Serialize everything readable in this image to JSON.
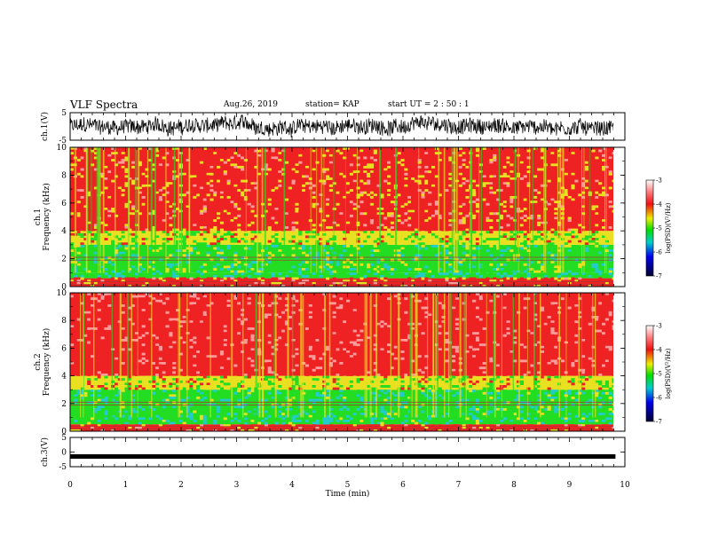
{
  "header": {
    "title": "VLF Spectra",
    "date": "Aug.26, 2019",
    "station": "station= KAP",
    "start": "start UT = 2 : 50 : 1"
  },
  "colors": {
    "red": "#ee2222",
    "pink": "#ff9a9a",
    "yellow": "#e8e020",
    "green": "#22dd22",
    "cyan": "#22cccc",
    "blue": "#1010cc",
    "navy": "#000040"
  },
  "chart_data": [
    {
      "type": "line",
      "ylabel": "ch.1(V)",
      "ylim": [
        -5,
        5
      ],
      "yticks": [
        "5",
        "-5"
      ],
      "description_values": "noisy waveform fluctuating roughly between -4 and 4 V",
      "xlim": [
        0,
        10
      ]
    },
    {
      "type": "heatmap",
      "ylabel": "ch.1\nFrequency (kHz)",
      "ylabel_lines": [
        "ch.1",
        "Frequency (kHz)"
      ],
      "ylim": [
        0,
        10
      ],
      "yticks": [
        "0",
        "2",
        "4",
        "6",
        "8",
        "10"
      ],
      "bands": [
        {
          "from": 0,
          "to": 0.6,
          "level": -4
        },
        {
          "from": 0.6,
          "to": 1.0,
          "level": -5.2
        },
        {
          "from": 1.0,
          "to": 3.0,
          "level": -5.0
        },
        {
          "from": 3.0,
          "to": 4.0,
          "level": -4.6
        },
        {
          "from": 4.0,
          "to": 10.0,
          "level": -4.0
        }
      ],
      "colorbar": {
        "label": "log(PSD)(V²/Hz)",
        "ticks": [
          "-3",
          "-4",
          "-5",
          "-6",
          "-7"
        ],
        "range": [
          -7,
          -3
        ]
      }
    },
    {
      "type": "heatmap",
      "ylabel": "ch.2\nFrequency (kHz)",
      "ylabel_lines": [
        "ch.2",
        "Frequency (kHz)"
      ],
      "ylim": [
        0,
        10
      ],
      "yticks": [
        "0",
        "2",
        "4",
        "6",
        "8",
        "10"
      ],
      "bands": [
        {
          "from": 0,
          "to": 0.5,
          "level": -4
        },
        {
          "from": 0.5,
          "to": 3.0,
          "level": -5.1
        },
        {
          "from": 3.0,
          "to": 4.0,
          "level": -4.6
        },
        {
          "from": 4.0,
          "to": 10.0,
          "level": -3.8
        }
      ],
      "colorbar": {
        "label": "log(PSD)(V²/Hz)",
        "ticks": [
          "-3",
          "-4",
          "-5",
          "-6",
          "-7"
        ],
        "range": [
          -7,
          -3
        ]
      }
    },
    {
      "type": "line",
      "ylabel": "ch.3(V)",
      "ylim": [
        -5,
        5
      ],
      "yticks": [
        "5",
        "0",
        "-5"
      ],
      "values_constant": -1.5,
      "xlim": [
        0,
        10
      ]
    }
  ],
  "xaxis": {
    "label": "Time (min)",
    "ticks": [
      "0",
      "1",
      "2",
      "3",
      "4",
      "5",
      "6",
      "7",
      "8",
      "9",
      "10"
    ],
    "xlim": [
      0,
      10
    ],
    "data_end": 9.83
  }
}
